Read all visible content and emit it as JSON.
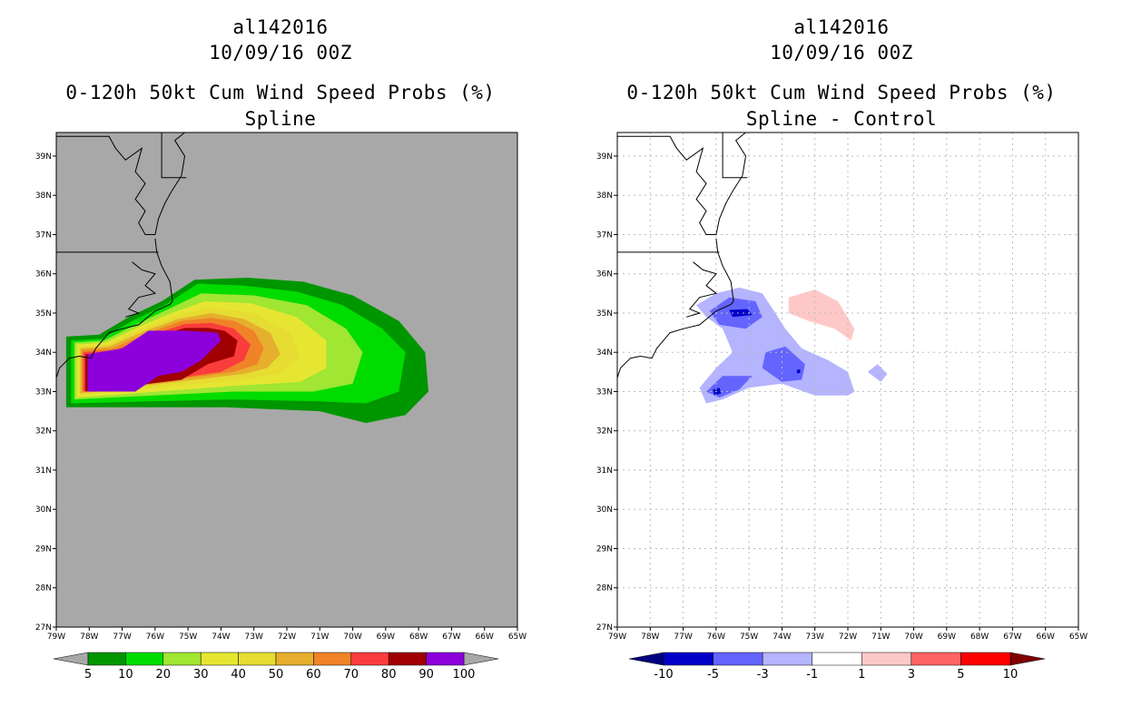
{
  "left_panel": {
    "title_line1": "al142016",
    "title_line2": "10/09/16 00Z",
    "title_line3": "0-120h 50kt Cum Wind Speed Probs (%)",
    "title_line4": "Spline"
  },
  "right_panel": {
    "title_line1": "al142016",
    "title_line2": "10/09/16 00Z",
    "title_line3": "0-120h 50kt Cum Wind Speed Probs (%)",
    "title_line4": "Spline - Control"
  },
  "axes": {
    "lon_labels": [
      "79W",
      "78W",
      "77W",
      "76W",
      "75W",
      "74W",
      "73W",
      "72W",
      "71W",
      "70W",
      "69W",
      "68W",
      "67W",
      "66W",
      "65W"
    ],
    "lat_labels": [
      "27N",
      "28N",
      "29N",
      "30N",
      "31N",
      "32N",
      "33N",
      "34N",
      "35N",
      "36N",
      "37N",
      "38N",
      "39N"
    ],
    "lon_range": [
      -79,
      -65
    ],
    "lat_range": [
      27,
      39.6
    ]
  },
  "colors": {
    "map_background_left": "#a8a8a8",
    "map_background_right": "#ffffff"
  },
  "colorbar_left": {
    "labels": [
      "5",
      "10",
      "20",
      "30",
      "40",
      "50",
      "60",
      "70",
      "80",
      "90",
      "100"
    ],
    "colors": [
      "#009600",
      "#00dc00",
      "#a0e632",
      "#e6e632",
      "#e6dc32",
      "#e6af2d",
      "#f08228",
      "#fa3c3c",
      "#a00000",
      "#8c00dc"
    ],
    "under_color": "#a8a8a8",
    "over_color": "#a8a8a8"
  },
  "colorbar_right": {
    "labels": [
      "-10",
      "-5",
      "-3",
      "-1",
      "1",
      "3",
      "5",
      "10"
    ],
    "colors": [
      "#0000c8",
      "#6464ff",
      "#b4b4ff",
      "#ffffff",
      "#ffc8c8",
      "#ff6464",
      "#ff0000"
    ],
    "under_color": "#000080",
    "over_color": "#800000"
  },
  "chart_data": [
    {
      "type": "heatmap",
      "title": "0-120h 50kt Cum Wind Speed Probs (%) - Spline",
      "storm": "al142016",
      "valid": "10/09/16 00Z",
      "units": "%",
      "levels": [
        5,
        10,
        20,
        30,
        40,
        50,
        60,
        70,
        80,
        90,
        100
      ],
      "approx_core_90_100pct_box_lon": [
        -78.4,
        -74.0
      ],
      "approx_core_90_100pct_box_lat": [
        33.0,
        34.5
      ],
      "approx_5pct_outer_extent_lon": [
        -78.7,
        -67.7
      ],
      "approx_5pct_outer_extent_lat": [
        32.2,
        35.9
      ]
    },
    {
      "type": "heatmap",
      "title": "0-120h 50kt Cum Wind Speed Probs (%) - Spline - Control",
      "storm": "al142016",
      "valid": "10/09/16 00Z",
      "units": "%",
      "levels": [
        -10,
        -5,
        -3,
        -1,
        1,
        3,
        5,
        10
      ],
      "min_difference_center": {
        "lon": -75.3,
        "lat": 35.0,
        "value": -10
      },
      "negative_region_lon": [
        -76.5,
        -72.0
      ],
      "negative_region_lat": [
        32.6,
        35.7
      ],
      "positive_region_center": {
        "lon": -72.6,
        "lat": 34.8,
        "value": 1
      }
    }
  ]
}
